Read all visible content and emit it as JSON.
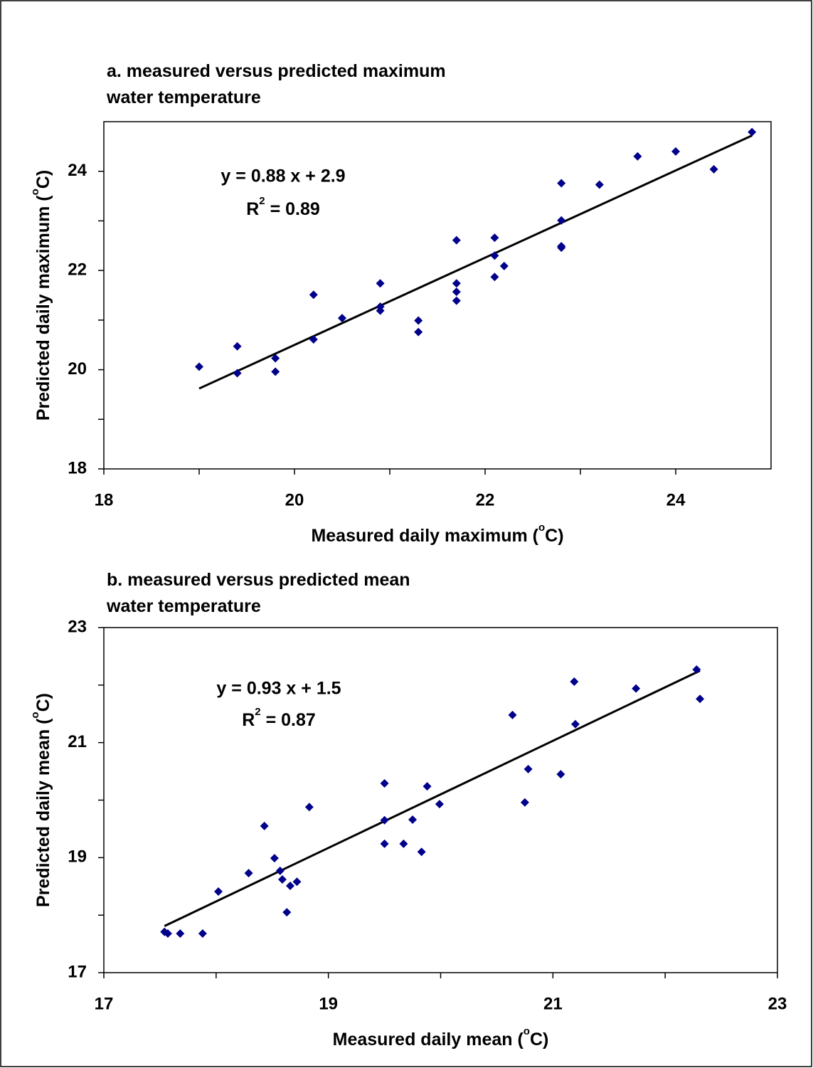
{
  "chart_data": [
    {
      "type": "scatter",
      "title": [
        "a. measured versus predicted maximum",
        "water temperature"
      ],
      "xlabel": {
        "text": "Measured daily maximum (",
        "sup": "o",
        "rest": "C)"
      },
      "ylabel": {
        "text": "Predicted daily maximum  (",
        "sup": "o",
        "rest": "C)"
      },
      "equation": "y = 0.88 x + 2.9",
      "r2": {
        "base": "R",
        "sup": "2",
        "rest": " = 0.89"
      },
      "color": "#00008b",
      "x": [
        19.0,
        19.4,
        19.4,
        19.8,
        19.8,
        20.2,
        20.2,
        20.5,
        20.9,
        20.9,
        20.9,
        21.3,
        21.3,
        21.7,
        21.7,
        21.7,
        21.7,
        22.1,
        22.1,
        22.1,
        22.2,
        22.8,
        22.8,
        22.8,
        22.8,
        23.2,
        23.6,
        24.0,
        24.4,
        24.8
      ],
      "values": [
        20.06,
        20.47,
        19.93,
        20.23,
        19.96,
        21.51,
        20.61,
        21.04,
        21.74,
        21.27,
        21.19,
        20.99,
        20.76,
        22.61,
        21.74,
        21.57,
        21.39,
        22.66,
        22.3,
        21.87,
        22.09,
        23.76,
        23.01,
        22.49,
        22.46,
        23.73,
        24.3,
        24.4,
        24.04,
        24.79
      ],
      "trendline": {
        "x": [
          19.0,
          24.8
        ],
        "values": [
          19.62,
          24.72
        ]
      },
      "xlim": [
        18,
        25
      ],
      "xticks": [
        18,
        20,
        22,
        24
      ],
      "ylim": [
        18,
        25
      ],
      "yticks": [
        18,
        20,
        22,
        24
      ]
    },
    {
      "type": "scatter",
      "title": [
        "b. measured versus predicted mean",
        "water temperature"
      ],
      "xlabel": {
        "text": "Measured daily mean (",
        "sup": "o",
        "rest": "C)"
      },
      "ylabel": {
        "text": "Predicted daily mean (",
        "sup": "o",
        "rest": "C)"
      },
      "equation": "y = 0.93 x + 1.5",
      "r2": {
        "base": "R",
        "sup": "2",
        "rest": " = 0.87"
      },
      "color": "#00008b",
      "x": [
        17.54,
        17.57,
        17.68,
        17.88,
        18.02,
        18.29,
        18.43,
        18.52,
        18.57,
        18.59,
        18.63,
        18.66,
        18.72,
        18.83,
        19.5,
        19.5,
        19.5,
        19.67,
        19.75,
        19.83,
        19.88,
        19.99,
        20.64,
        20.78,
        20.75,
        21.07,
        21.19,
        21.2,
        21.74,
        22.28,
        22.31
      ],
      "values": [
        17.71,
        17.68,
        17.68,
        17.68,
        18.41,
        18.73,
        19.55,
        18.99,
        18.77,
        18.62,
        18.05,
        18.51,
        18.58,
        19.88,
        20.29,
        19.65,
        19.24,
        19.24,
        19.66,
        19.1,
        20.24,
        19.93,
        21.48,
        20.54,
        19.96,
        20.45,
        22.06,
        21.32,
        21.94,
        22.27,
        21.76
      ],
      "trendline": {
        "x": [
          17.54,
          22.31
        ],
        "values": [
          17.81,
          22.25
        ]
      },
      "xlim": [
        17,
        23
      ],
      "xticks": [
        17,
        19,
        21,
        23
      ],
      "ylim": [
        17,
        23
      ],
      "yticks": [
        17,
        19,
        21,
        23
      ]
    }
  ]
}
